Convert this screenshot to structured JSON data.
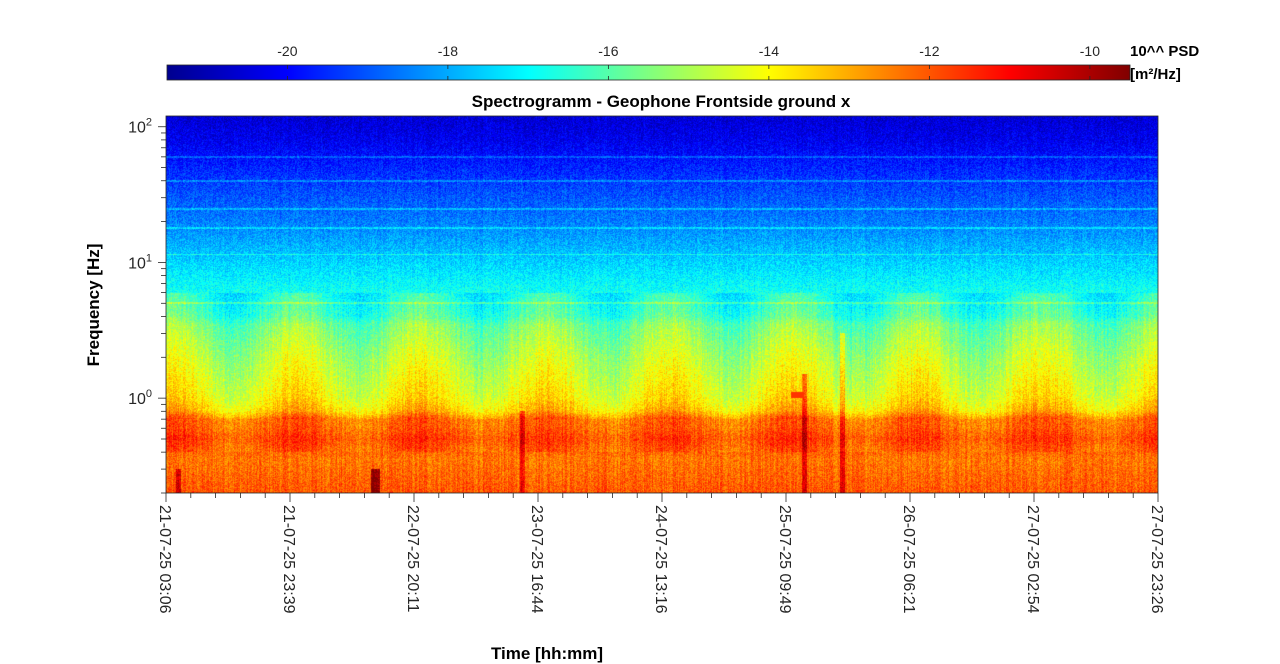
{
  "chart_data": {
    "type": "heatmap",
    "title": "Spectrogramm - Geophone Frontside ground x",
    "xlabel": "Time [hh:mm]",
    "ylabel": "Frequency [Hz]",
    "y_scale": "log",
    "ylim": [
      0.2,
      120
    ],
    "y_ticks": [
      {
        "base": "10",
        "exp": "2",
        "value": 100
      },
      {
        "base": "10",
        "exp": "1",
        "value": 10
      },
      {
        "base": "10",
        "exp": "0",
        "value": 1
      }
    ],
    "x_ticks": [
      "21-07-25 03:06",
      "21-07-25 23:39",
      "22-07-25 20:11",
      "23-07-25 16:44",
      "24-07-25 13:16",
      "25-07-25 09:49",
      "26-07-25 06:21",
      "27-07-25 02:54",
      "27-07-25 23:26"
    ],
    "colorbar": {
      "position": "top",
      "unit_label": "10^^ PSD [m²/Hz]",
      "unit_line1": "10^^ PSD",
      "unit_line2": "[m²/Hz]",
      "range": [
        -21.5,
        -9.5
      ],
      "ticks": [
        "-20",
        "-18",
        "-16",
        "-14",
        "-12",
        "-10"
      ],
      "tick_values": [
        -20,
        -18,
        -16,
        -14,
        -12,
        -10
      ],
      "colormap": "jet"
    },
    "psd_profile": {
      "description_note": "",
      "frequency_hz": [
        0.2,
        0.35,
        0.5,
        0.6,
        0.7,
        0.8,
        1.0,
        2.0,
        3.5,
        4.0,
        6.0,
        10.0,
        20.0,
        40.0,
        80.0,
        120.0
      ],
      "log10_psd": [
        -12.0,
        -12.4,
        -11.8,
        -12.2,
        -12.3,
        -13.4,
        -14.0,
        -14.8,
        -15.6,
        -16.2,
        -16.8,
        -17.5,
        -18.5,
        -19.3,
        -20.2,
        -20.5
      ]
    }
  }
}
